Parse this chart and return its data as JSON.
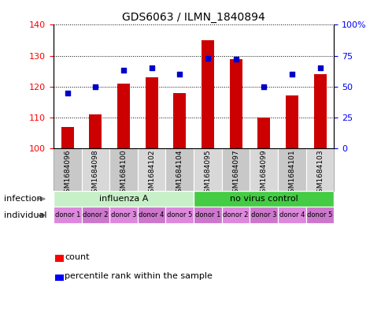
{
  "title": "GDS6063 / ILMN_1840894",
  "samples": [
    "GSM1684096",
    "GSM1684098",
    "GSM1684100",
    "GSM1684102",
    "GSM1684104",
    "GSM1684095",
    "GSM1684097",
    "GSM1684099",
    "GSM1684101",
    "GSM1684103"
  ],
  "bar_values": [
    107,
    111,
    121,
    123,
    118,
    135,
    129,
    110,
    117,
    124
  ],
  "scatter_values": [
    45,
    50,
    63,
    65,
    60,
    73,
    72,
    50,
    60,
    65
  ],
  "ylim_left": [
    100,
    140
  ],
  "ylim_right": [
    0,
    100
  ],
  "yticks_left": [
    100,
    110,
    120,
    130,
    140
  ],
  "yticks_right": [
    0,
    25,
    50,
    75,
    100
  ],
  "ytick_labels_right": [
    "0",
    "25",
    "50",
    "75",
    "100%"
  ],
  "bar_color": "#cc0000",
  "scatter_color": "#0000cc",
  "bar_base": 100,
  "infection_groups": [
    {
      "label": "influenza A",
      "start": 0,
      "end": 5,
      "color": "#c8f0c8"
    },
    {
      "label": "no virus control",
      "start": 5,
      "end": 10,
      "color": "#44cc44"
    }
  ],
  "individual_labels": [
    "donor 1",
    "donor 2",
    "donor 3",
    "donor 4",
    "donor 5",
    "donor 1",
    "donor 2",
    "donor 3",
    "donor 4",
    "donor 5"
  ],
  "individual_color": "#dd88dd",
  "infection_label": "infection",
  "individual_label": "individual",
  "legend_count_label": "count",
  "legend_percentile_label": "percentile rank within the sample",
  "sample_bg_color": "#cccccc",
  "plot_bg_color": "#ffffff"
}
